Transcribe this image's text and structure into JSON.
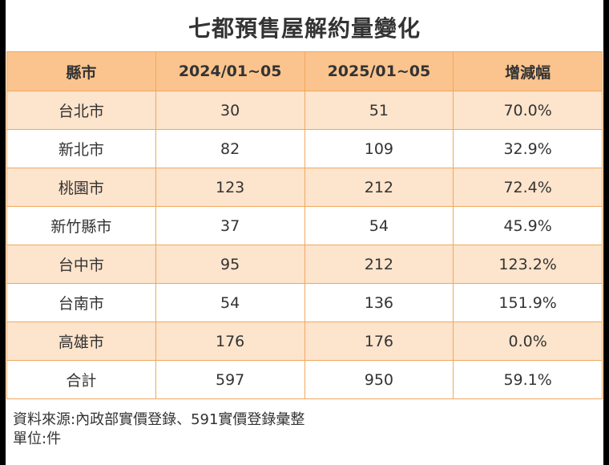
{
  "chart_data": {
    "type": "table",
    "title": "七都預售屋解約量變化",
    "columns": [
      "縣市",
      "2024/01~05",
      "2025/01~05",
      "增減幅"
    ],
    "rows": [
      [
        "台北市",
        "30",
        "51",
        "70.0%"
      ],
      [
        "新北市",
        "82",
        "109",
        "32.9%"
      ],
      [
        "桃園市",
        "123",
        "212",
        "72.4%"
      ],
      [
        "新竹縣市",
        "37",
        "54",
        "45.9%"
      ],
      [
        "台中市",
        "95",
        "212",
        "123.2%"
      ],
      [
        "台南市",
        "54",
        "136",
        "151.9%"
      ],
      [
        "高雄市",
        "176",
        "176",
        "0.0%"
      ],
      [
        "合計",
        "597",
        "950",
        "59.1%"
      ]
    ]
  },
  "footer": {
    "source": "資料來源:內政部實價登錄、591實價登錄彙整",
    "unit": "單位:件"
  },
  "colors": {
    "header_bg": "#fbc48e",
    "stripe_bg": "#fde4cc",
    "border": "#f0a860",
    "text": "#333333"
  }
}
